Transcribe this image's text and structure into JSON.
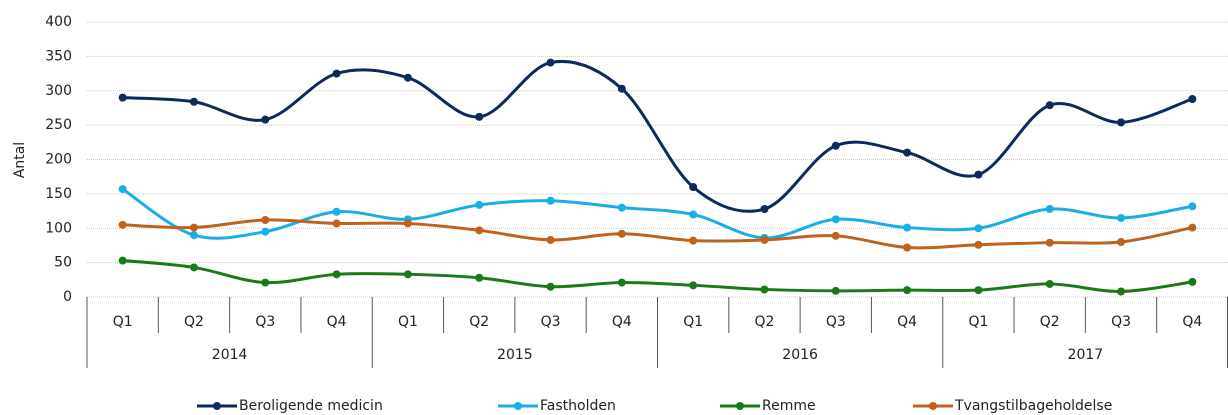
{
  "chart_data": {
    "type": "line",
    "y_label": "Antal",
    "categories": [
      "Q1",
      "Q2",
      "Q3",
      "Q4",
      "Q1",
      "Q2",
      "Q3",
      "Q4",
      "Q1",
      "Q2",
      "Q3",
      "Q4",
      "Q1",
      "Q2",
      "Q3",
      "Q4"
    ],
    "category_groups": [
      "2014",
      "2015",
      "2016",
      "2017"
    ],
    "ylim": [
      0,
      400
    ],
    "yticks": [
      0,
      50,
      100,
      150,
      200,
      250,
      300,
      350,
      400
    ],
    "grid": true,
    "smooth": true,
    "legend": "bottom",
    "series": [
      {
        "name": "Beroligende medicin",
        "color": "#0d2a5c",
        "values": [
          290,
          284,
          258,
          325,
          319,
          262,
          341,
          303,
          160,
          128,
          220,
          210,
          178,
          279,
          254,
          288
        ]
      },
      {
        "name": "Fastholden",
        "color": "#1aaee8",
        "values": [
          157,
          90,
          95,
          124,
          113,
          134,
          140,
          130,
          120,
          86,
          113,
          101,
          100,
          128,
          115,
          132
        ]
      },
      {
        "name": "Remme",
        "color": "#1a7a1a",
        "values": [
          53,
          43,
          21,
          33,
          33,
          28,
          15,
          21,
          17,
          11,
          9,
          10,
          10,
          19,
          8,
          22
        ]
      },
      {
        "name": "Tvangstilbageholdelse",
        "color": "#c0621c",
        "values": [
          105,
          101,
          112,
          107,
          107,
          97,
          83,
          92,
          82,
          83,
          89,
          72,
          76,
          79,
          80,
          101
        ]
      }
    ]
  }
}
